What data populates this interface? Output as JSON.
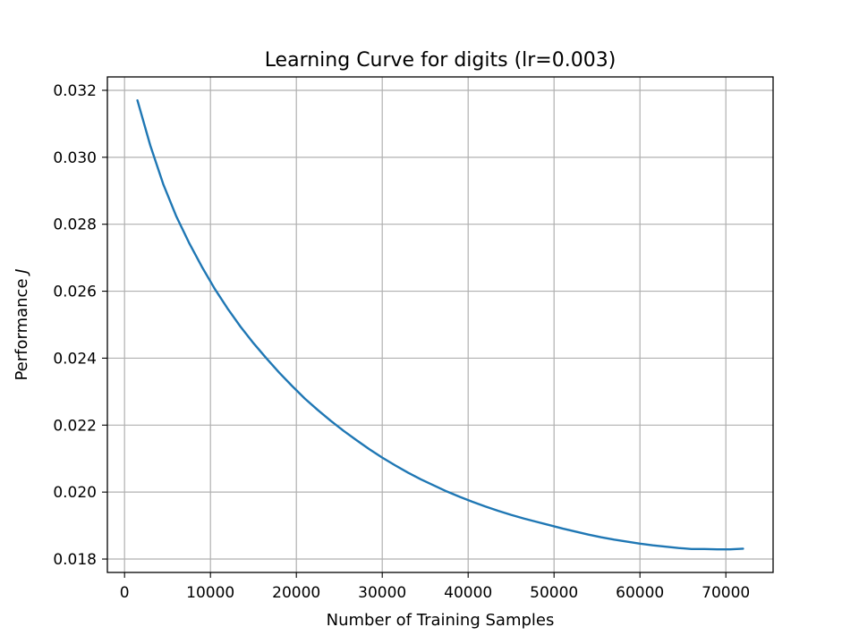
{
  "chart_data": {
    "type": "line",
    "title": "Learning Curve for digits (lr=0.003)",
    "xlabel": "Number of Training Samples",
    "ylabel_prefix": "Performance ",
    "ylabel_symbol": "J",
    "xlim": [
      -2000,
      75500
    ],
    "ylim": [
      0.0176,
      0.0324
    ],
    "xticks": [
      0,
      10000,
      20000,
      30000,
      40000,
      50000,
      60000,
      70000
    ],
    "xtick_labels": [
      "0",
      "10000",
      "20000",
      "30000",
      "40000",
      "50000",
      "60000",
      "70000"
    ],
    "yticks": [
      0.018,
      0.02,
      0.022,
      0.024,
      0.026,
      0.028,
      0.03,
      0.032
    ],
    "ytick_labels": [
      "0.018",
      "0.020",
      "0.022",
      "0.024",
      "0.026",
      "0.028",
      "0.030",
      "0.032"
    ],
    "grid": true,
    "series": [
      {
        "color": "#1f77b4",
        "x": [
          1500,
          3000,
          4500,
          6000,
          7500,
          9000,
          10500,
          12000,
          13500,
          15000,
          16500,
          18000,
          19500,
          21000,
          22500,
          24000,
          25500,
          27000,
          28500,
          30000,
          31500,
          33000,
          34500,
          36000,
          37500,
          39000,
          40500,
          42000,
          43500,
          45000,
          46500,
          48000,
          49500,
          51000,
          52500,
          54000,
          55500,
          57000,
          58500,
          60000,
          61500,
          63000,
          64500,
          66000,
          67500,
          69000,
          70500,
          72000
        ],
        "y": [
          0.0317,
          0.03035,
          0.0292,
          0.02825,
          0.02745,
          0.02673,
          0.02607,
          0.02548,
          0.02494,
          0.02445,
          0.024,
          0.02357,
          0.02317,
          0.02279,
          0.02245,
          0.02213,
          0.02183,
          0.02155,
          0.02128,
          0.02103,
          0.0208,
          0.02058,
          0.02038,
          0.0202,
          0.02002,
          0.01986,
          0.01971,
          0.01957,
          0.01944,
          0.01932,
          0.01921,
          0.01911,
          0.01901,
          0.01891,
          0.01882,
          0.01873,
          0.01865,
          0.01858,
          0.01852,
          0.01846,
          0.01841,
          0.01837,
          0.01833,
          0.0183,
          0.0183,
          0.01829,
          0.01829,
          0.01831
        ]
      }
    ]
  }
}
